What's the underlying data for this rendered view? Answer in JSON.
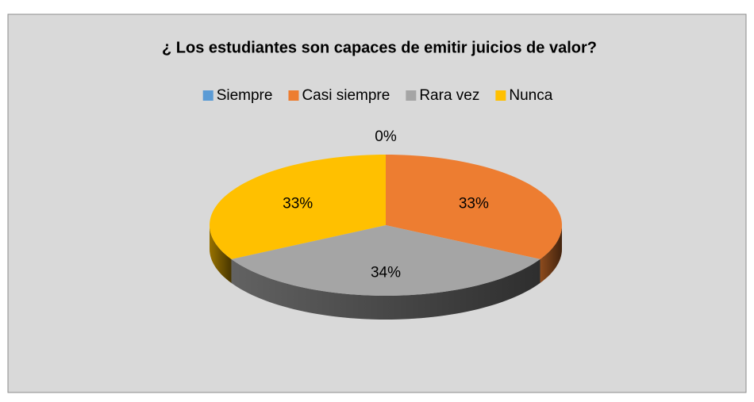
{
  "chart_data": {
    "type": "pie3d",
    "title": "¿ Los estudiantes son capaces de emitir juicios de valor?",
    "categories": [
      "Siempre",
      "Casi siempre",
      "Rara vez",
      "Nunca"
    ],
    "values": [
      0,
      33,
      34,
      33
    ],
    "value_labels": [
      "0%",
      "33%",
      "34%",
      "33%"
    ],
    "colors": [
      "#5b9bd5",
      "#ed7d31",
      "#a5a5a5",
      "#ffc000"
    ],
    "legend": "top"
  }
}
